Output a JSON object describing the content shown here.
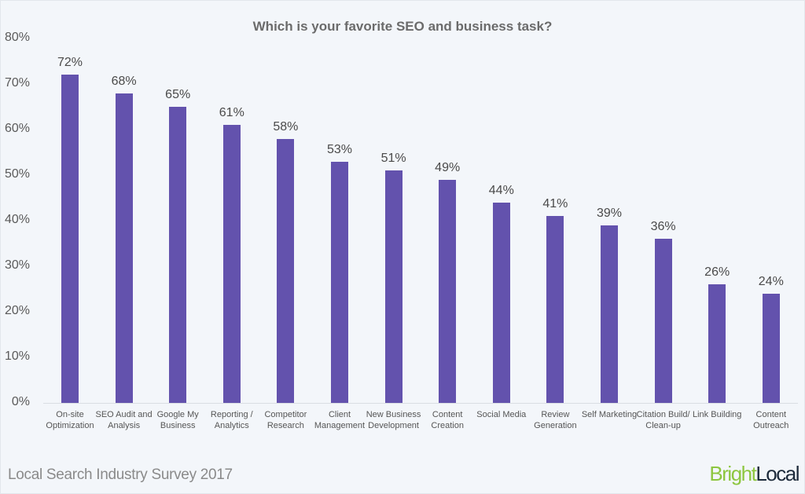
{
  "chart_data": {
    "type": "bar",
    "title": "Which is your favorite SEO and business task?",
    "xlabel": "",
    "ylabel": "",
    "ylim": [
      0,
      80
    ],
    "yticks": [
      "0%",
      "10%",
      "20%",
      "30%",
      "40%",
      "50%",
      "60%",
      "70%",
      "80%"
    ],
    "grid": false,
    "categories": [
      "On-site Optimization",
      "SEO Audit and Analysis",
      "Google My Business",
      "Reporting / Analytics",
      "Competitor Research",
      "Client Management",
      "New Business Development",
      "Content Creation",
      "Social Media",
      "Review Generation",
      "Self Marketing",
      "Citation Build/ Clean-up",
      "Link Building",
      "Content Outreach"
    ],
    "values": [
      72,
      68,
      65,
      61,
      58,
      53,
      51,
      49,
      44,
      41,
      39,
      36,
      26,
      24
    ],
    "value_labels": [
      "72%",
      "68%",
      "65%",
      "61%",
      "58%",
      "53%",
      "51%",
      "49%",
      "44%",
      "41%",
      "39%",
      "36%",
      "26%",
      "24%"
    ],
    "bar_color": "#6352ad"
  },
  "footer": {
    "survey": "Local Search Industry Survey 2017"
  },
  "logo": {
    "part1": "Bright",
    "part2": "Local"
  }
}
